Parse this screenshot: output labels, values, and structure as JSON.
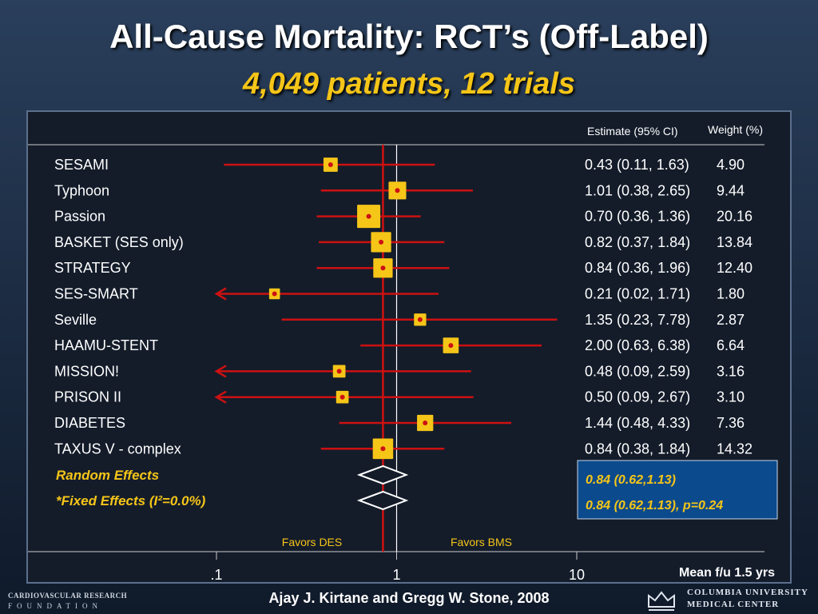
{
  "slide": {
    "title": "All-Cause Mortality: RCT’s (Off-Label)",
    "subtitle": "4,049 patients, 12 trials",
    "citation": "Ajay J. Kirtane and Gregg W. Stone, 2008",
    "logos": {
      "left_line1": "CARDIOVASCULAR RESEARCH",
      "left_line2": "FOUNDATION",
      "right_line1": "COLUMBIA UNIVERSITY",
      "right_line2": "MEDICAL CENTER"
    }
  },
  "colors": {
    "box": "#f5c518",
    "ci_line": "#cc1111",
    "null_line": "#d01010",
    "pooled_box_bg": "#0b4a8c",
    "pooled_text": "#f5c518",
    "summary_label": "#f5c518",
    "favors_label": "#f5c518"
  },
  "chart_data": {
    "type": "forest",
    "x_scale": "log",
    "xlim": [
      0.1,
      10
    ],
    "x_ticks": [
      ".1",
      "1",
      "10"
    ],
    "x_tick_values": [
      0.1,
      1,
      10
    ],
    "col_header_estimate": "Estimate (95% CI)",
    "col_header_weight": "Weight (%)",
    "favors_left": "Favors DES",
    "favors_right": "Favors BMS",
    "followup_note": "Mean f/u 1.5 yrs",
    "studies": [
      {
        "name": "SESAMI",
        "estimate": 0.43,
        "lower": 0.11,
        "upper": 1.63,
        "weight": 4.9,
        "text": "0.43 (0.11, 1.63)",
        "weight_text": "4.90"
      },
      {
        "name": "Typhoon",
        "estimate": 1.01,
        "lower": 0.38,
        "upper": 2.65,
        "weight": 9.44,
        "text": "1.01 (0.38, 2.65)",
        "weight_text": "9.44"
      },
      {
        "name": "Passion",
        "estimate": 0.7,
        "lower": 0.36,
        "upper": 1.36,
        "weight": 20.16,
        "text": "0.70 (0.36, 1.36)",
        "weight_text": "20.16"
      },
      {
        "name": "BASKET (SES only)",
        "estimate": 0.82,
        "lower": 0.37,
        "upper": 1.84,
        "weight": 13.84,
        "text": "0.82 (0.37, 1.84)",
        "weight_text": "13.84"
      },
      {
        "name": "STRATEGY",
        "estimate": 0.84,
        "lower": 0.36,
        "upper": 1.96,
        "weight": 12.4,
        "text": "0.84 (0.36, 1.96)",
        "weight_text": "12.40"
      },
      {
        "name": "SES-SMART",
        "estimate": 0.21,
        "lower": 0.02,
        "upper": 1.71,
        "weight": 1.8,
        "text": "0.21 (0.02, 1.71)",
        "weight_text": "1.80"
      },
      {
        "name": "Seville",
        "estimate": 1.35,
        "lower": 0.23,
        "upper": 7.78,
        "weight": 2.87,
        "text": "1.35 (0.23, 7.78)",
        "weight_text": "2.87"
      },
      {
        "name": "HAAMU-STENT",
        "estimate": 2.0,
        "lower": 0.63,
        "upper": 6.38,
        "weight": 6.64,
        "text": "2.00 (0.63, 6.38)",
        "weight_text": "6.64"
      },
      {
        "name": "MISSION!",
        "estimate": 0.48,
        "lower": 0.09,
        "upper": 2.59,
        "weight": 3.16,
        "text": "0.48 (0.09, 2.59)",
        "weight_text": "3.16"
      },
      {
        "name": "PRISON II",
        "estimate": 0.5,
        "lower": 0.09,
        "upper": 2.67,
        "weight": 3.1,
        "text": "0.50 (0.09, 2.67)",
        "weight_text": "3.10"
      },
      {
        "name": "DIABETES",
        "estimate": 1.44,
        "lower": 0.48,
        "upper": 4.33,
        "weight": 7.36,
        "text": "1.44 (0.48, 4.33)",
        "weight_text": "7.36"
      },
      {
        "name": "TAXUS V - complex",
        "estimate": 0.84,
        "lower": 0.38,
        "upper": 1.84,
        "weight": 14.32,
        "text": "0.84 (0.38, 1.84)",
        "weight_text": "14.32"
      }
    ],
    "pooled": [
      {
        "label": "Random Effects",
        "estimate": 0.84,
        "lower": 0.62,
        "upper": 1.13,
        "text": "0.84 (0.62,1.13)"
      },
      {
        "label": "*Fixed Effects (I²=0.0%)",
        "estimate": 0.84,
        "lower": 0.62,
        "upper": 1.13,
        "text": "0.84 (0.62,1.13), p=0.24"
      }
    ]
  }
}
